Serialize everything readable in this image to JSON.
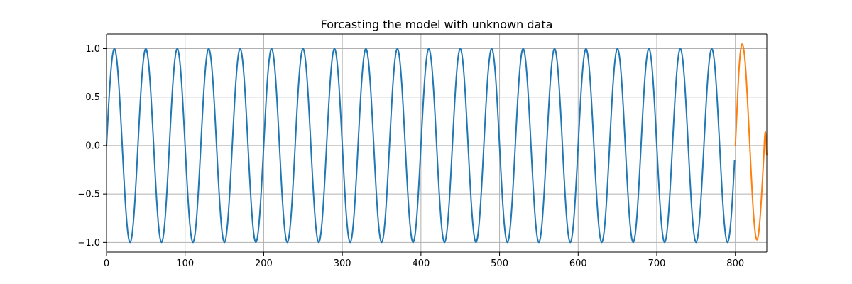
{
  "chart_data": {
    "type": "line",
    "title": "Forcasting the model with unknown data",
    "xlabel": "",
    "ylabel": "",
    "xlim": [
      0,
      840
    ],
    "ylim": [
      -1.1,
      1.15
    ],
    "x_ticks": [
      0,
      100,
      200,
      300,
      400,
      500,
      600,
      700,
      800
    ],
    "x_tick_labels": [
      "0",
      "100",
      "200",
      "300",
      "400",
      "500",
      "600",
      "700",
      "800"
    ],
    "y_ticks": [
      -1.0,
      -0.5,
      0.0,
      0.5,
      1.0
    ],
    "y_tick_labels": [
      "−1.0",
      "−0.5",
      "0.0",
      "0.5",
      "1.0"
    ],
    "grid": true,
    "series": [
      {
        "color": "#1f77b4",
        "function": "sin",
        "period": 40,
        "amplitude": 1.0,
        "x_start": 0,
        "x_end": 799,
        "step": 1
      },
      {
        "color": "#ff7f0e",
        "x": [
          800,
          802,
          804,
          806,
          808,
          810,
          812,
          814,
          816,
          818,
          820,
          822,
          824,
          826,
          828,
          830,
          832,
          834,
          836,
          838,
          840
        ],
        "y": [
          0.0,
          0.35,
          0.7,
          0.93,
          1.04,
          1.02,
          0.9,
          0.68,
          0.38,
          0.06,
          -0.27,
          -0.57,
          -0.8,
          -0.94,
          -0.97,
          -0.88,
          -0.69,
          -0.43,
          -0.13,
          0.14,
          -0.1
        ]
      }
    ]
  }
}
